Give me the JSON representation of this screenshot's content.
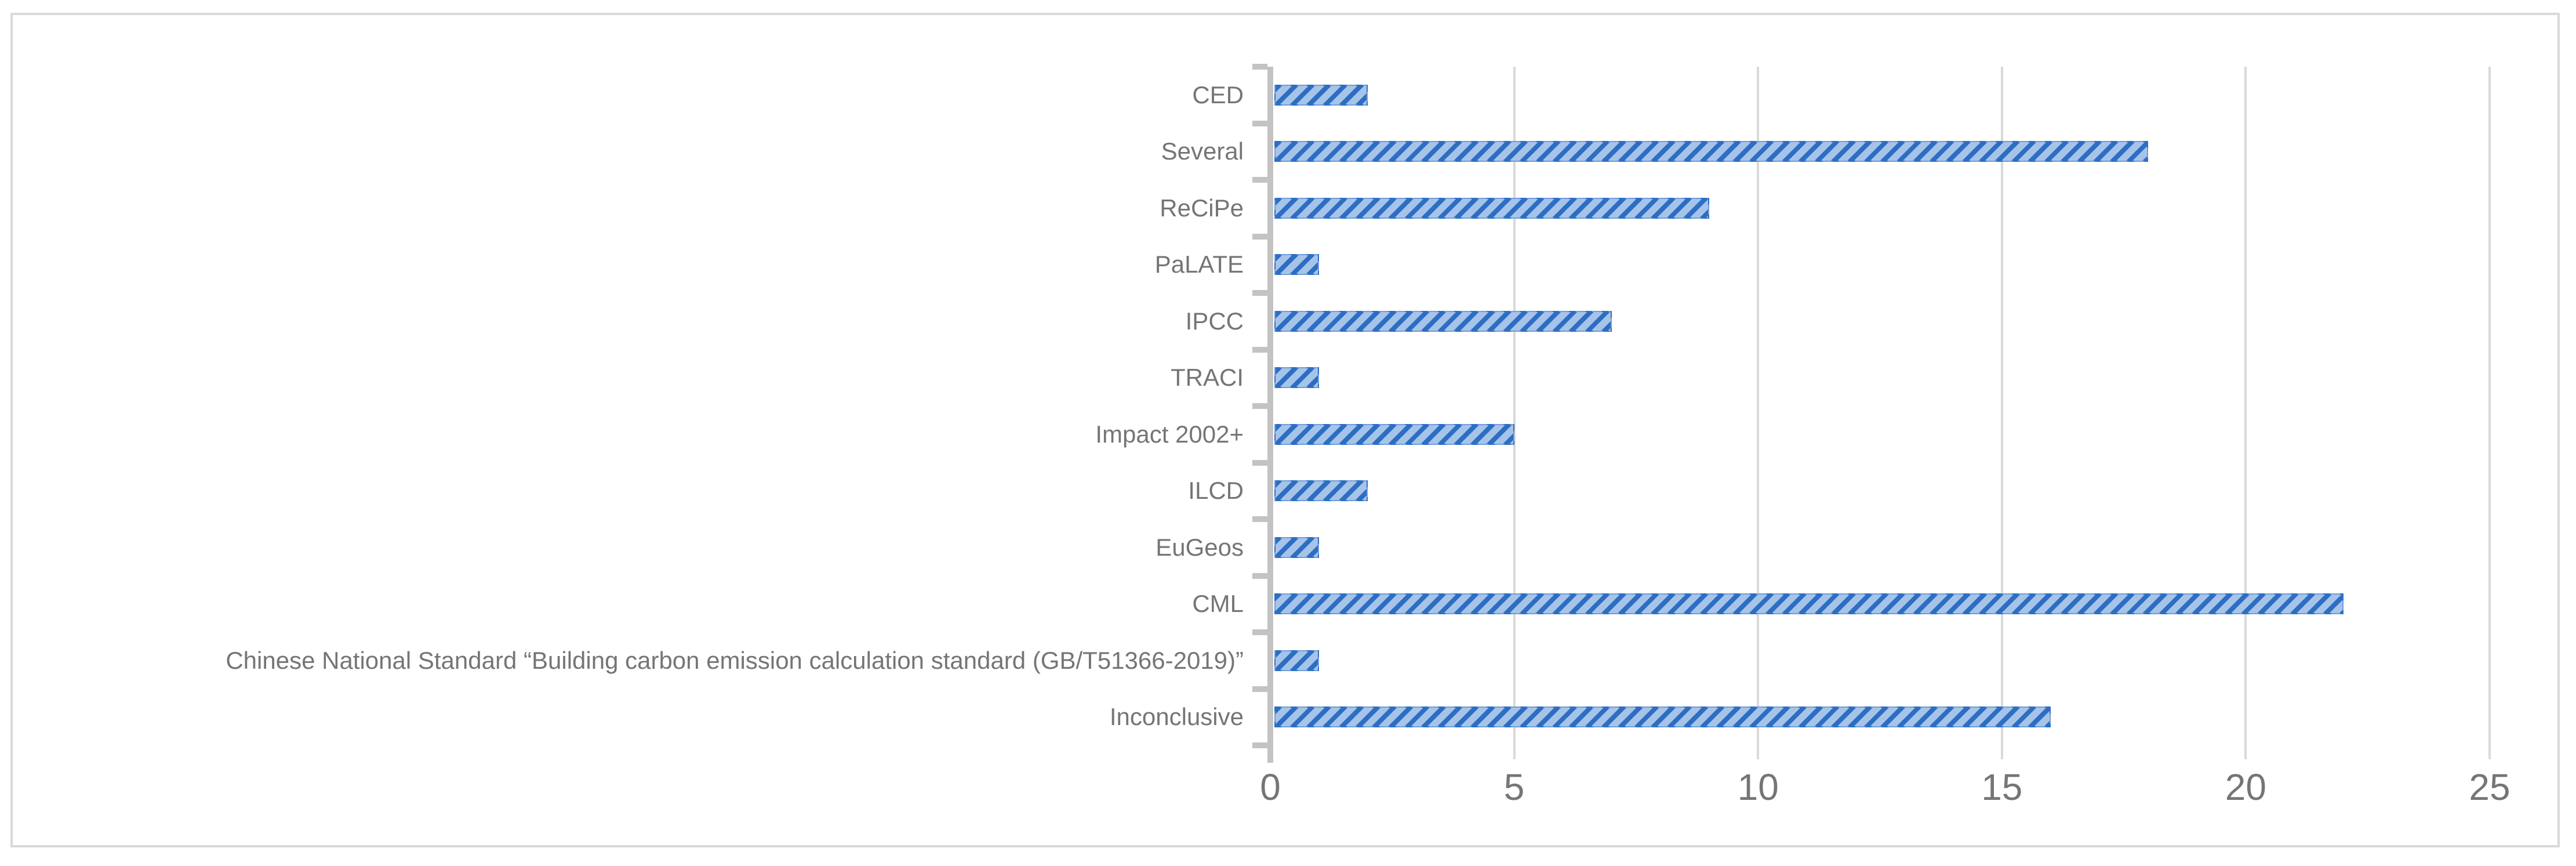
{
  "chart_data": {
    "type": "bar",
    "orientation": "horizontal",
    "title": "",
    "categories": [
      "CED",
      "Several",
      "ReCiPe",
      "PaLATE",
      "IPCC",
      "TRACI",
      "Impact 2002+",
      "ILCD",
      "EuGeos",
      "CML",
      "Chinese National Standard “Building carbon emission calculation standard (GB/T51366-2019)”",
      "Inconclusive"
    ],
    "values": [
      2,
      18,
      9,
      1,
      7,
      1,
      5,
      2,
      1,
      22,
      1,
      16
    ],
    "xlabel": "",
    "ylabel": "",
    "xlim": [
      0,
      25
    ],
    "x_ticks": [
      0,
      5,
      10,
      15,
      20,
      25
    ],
    "gridlines": [
      5,
      10,
      15,
      20,
      25
    ],
    "grid": "vertical-only",
    "legend_position": "none",
    "bar_pattern": "diagonal-hatch-upward",
    "colors": {
      "bar_fill_light": "#A6C4E9",
      "bar_hatch_dark": "#2D6EC3",
      "gridline": "#D9D9D9",
      "axis_line": "#C3C3C3",
      "label_text": "#757575",
      "figure_border": "#D9D9D9",
      "background": "#FFFFFF"
    }
  }
}
